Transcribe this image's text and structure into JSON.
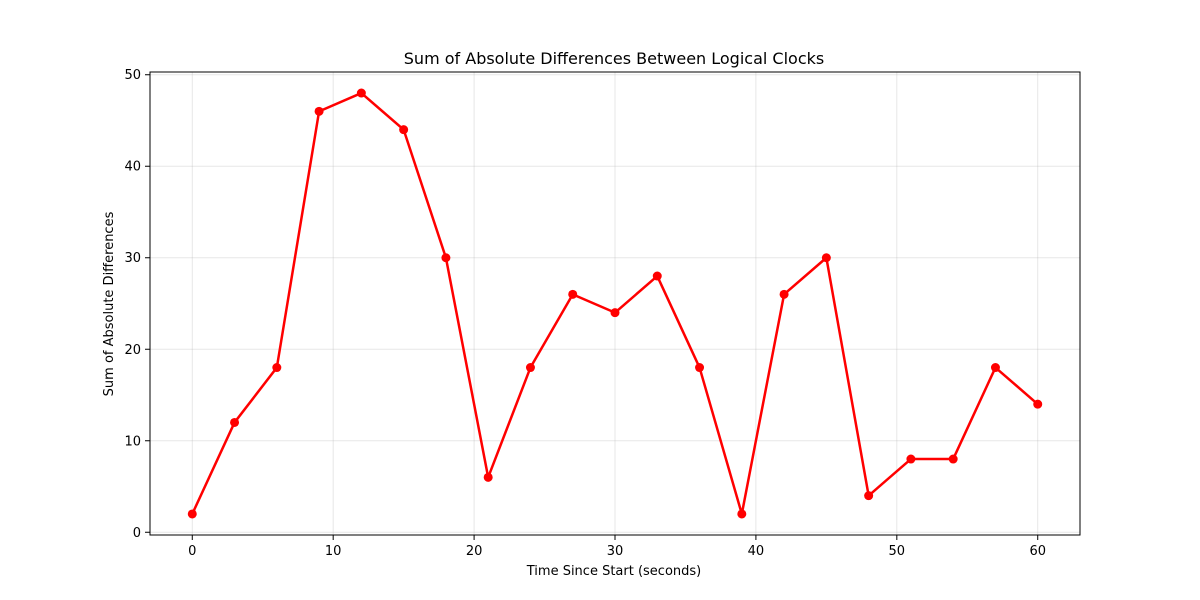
{
  "colors": {
    "series": "#ff0000",
    "grid": "#b0b0b0",
    "axis": "#000000",
    "background": "#ffffff"
  },
  "chart_data": {
    "type": "line",
    "title": "Sum of Absolute Differences Between Logical Clocks",
    "xlabel": "Time Since Start (seconds)",
    "ylabel": "Sum of Absolute Differences",
    "xlim": [
      -3,
      63
    ],
    "ylim": [
      -0.3,
      50.3
    ],
    "xticks": [
      0,
      10,
      20,
      30,
      40,
      50,
      60
    ],
    "yticks": [
      0,
      10,
      20,
      30,
      40,
      50
    ],
    "grid": true,
    "legend": "none",
    "series": [
      {
        "name": "Sum of Absolute Differences",
        "x": [
          0,
          3,
          6,
          9,
          12,
          15,
          18,
          21,
          24,
          27,
          30,
          33,
          36,
          39,
          42,
          45,
          48,
          51,
          54,
          57,
          60
        ],
        "y": [
          2,
          12,
          18,
          46,
          48,
          44,
          30,
          6,
          18,
          26,
          24,
          28,
          18,
          2,
          26,
          30,
          4,
          8,
          8,
          18,
          14
        ],
        "marker": "circle"
      }
    ]
  }
}
